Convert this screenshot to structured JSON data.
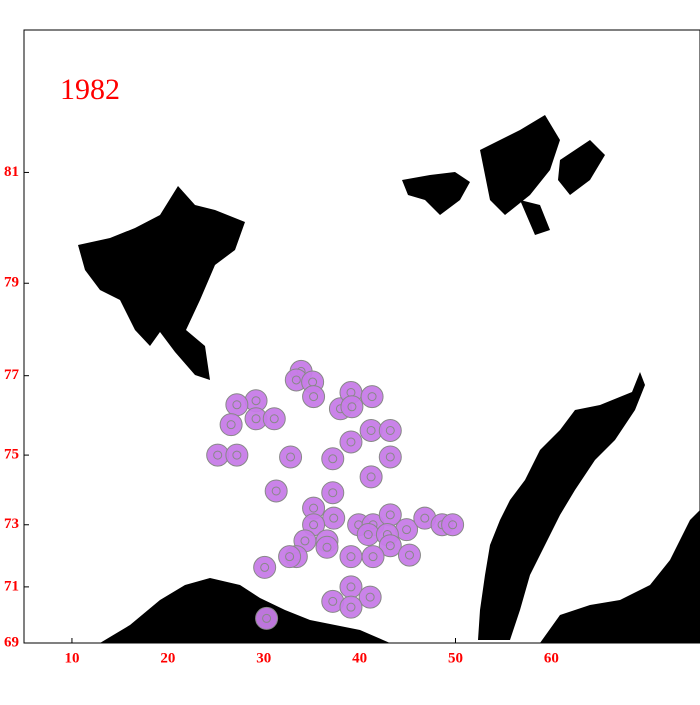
{
  "chart_data": {
    "type": "map",
    "title": "1982",
    "xlim": [
      5,
      75.5
    ],
    "ylim": [
      69,
      83
    ],
    "xticks": [
      10,
      20,
      30,
      40,
      50,
      60
    ],
    "yticks": [
      69,
      71,
      73,
      75,
      77,
      79,
      81
    ],
    "color": "#c77ce8",
    "lon": [
      33.9,
      33.4,
      35.1,
      29.2,
      27.2,
      29.2,
      31.1,
      26.6,
      35.2,
      38.0,
      39.1,
      41.3,
      39.2,
      41.2,
      43.2,
      39.1,
      25.2,
      27.2,
      32.8,
      37.2,
      43.2,
      41.2,
      31.3,
      37.2,
      35.2,
      37.3,
      35.2,
      39.9,
      41.4,
      43.2,
      44.9,
      46.8,
      48.6,
      49.7,
      34.3,
      36.6,
      40.9,
      42.9,
      36.6,
      43.2,
      45.2,
      33.4,
      39.1,
      41.4,
      30.1,
      39.1,
      41.1,
      37.2,
      39.1,
      30.3,
      32.7
    ],
    "lat": [
      77.1,
      76.9,
      76.85,
      76.4,
      76.3,
      75.95,
      75.95,
      75.8,
      76.5,
      76.2,
      76.6,
      76.5,
      76.25,
      75.65,
      75.65,
      75.35,
      75.0,
      75.0,
      74.95,
      74.9,
      74.95,
      74.4,
      74.0,
      73.95,
      73.5,
      73.2,
      73.0,
      73.0,
      73.0,
      73.3,
      72.85,
      73.2,
      73.0,
      73.0,
      72.5,
      72.5,
      72.7,
      72.7,
      72.3,
      72.35,
      72.05,
      72.0,
      72.0,
      72.0,
      71.65,
      71.0,
      70.65,
      70.5,
      70.3,
      69.9,
      72.0
    ]
  }
}
